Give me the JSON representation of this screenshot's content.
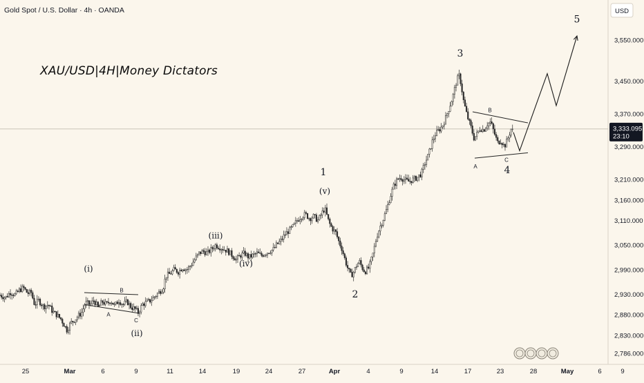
{
  "header": {
    "symbol_line": "Gold Spot / U.S. Dollar · 4h · OANDA"
  },
  "annotation": "XAU/USD|4H|Money Dictators",
  "colors": {
    "background": "#fbf6ec",
    "candle": "#2b2b2b",
    "current_price_bg": "#131722",
    "current_price_text": "#ffffff",
    "pattern_line": "#222222"
  },
  "chart_data": {
    "type": "candlestick",
    "y_axis_currency": "USD",
    "ylim": [
      2770,
      3620
    ],
    "yticks": [
      {
        "value": 3550,
        "label": "3,550.000"
      },
      {
        "value": 3450,
        "label": "3,450.000"
      },
      {
        "value": 3370,
        "label": "3,370.000"
      },
      {
        "value": 3290,
        "label": "3,290.000"
      },
      {
        "value": 3210,
        "label": "3,210.000"
      },
      {
        "value": 3160,
        "label": "3,160.000"
      },
      {
        "value": 3110,
        "label": "3,110.000"
      },
      {
        "value": 3050,
        "label": "3,050.000"
      },
      {
        "value": 2990,
        "label": "2,990.000"
      },
      {
        "value": 2930,
        "label": "2,930.000"
      },
      {
        "value": 2880,
        "label": "2,880.000"
      },
      {
        "value": 2830,
        "label": "2,830.000"
      },
      {
        "value": 2786,
        "label": "2,786.000"
      }
    ],
    "current_price": {
      "value": 3333.095,
      "label": "3,333.095",
      "countdown": "23:10"
    },
    "xticks": [
      "25",
      "Mar",
      "6",
      "9",
      "11",
      "14",
      "19",
      "24",
      "27",
      "Apr",
      "4",
      "9",
      "14",
      "17",
      "23",
      "28",
      "May",
      "6",
      "9"
    ],
    "path_points": [
      [
        0,
        2928
      ],
      [
        8,
        2922
      ],
      [
        15,
        2935
      ],
      [
        22,
        2928
      ],
      [
        28,
        2940
      ],
      [
        34,
        2946
      ],
      [
        40,
        2932
      ],
      [
        45,
        2935
      ],
      [
        50,
        2905
      ],
      [
        56,
        2915
      ],
      [
        63,
        2900
      ],
      [
        70,
        2905
      ],
      [
        76,
        2888
      ],
      [
        82,
        2880
      ],
      [
        88,
        2870
      ],
      [
        93,
        2855
      ],
      [
        97,
        2842
      ],
      [
        102,
        2860
      ],
      [
        108,
        2868
      ],
      [
        115,
        2880
      ],
      [
        118,
        2885
      ],
      [
        124,
        2910
      ],
      [
        130,
        2905
      ],
      [
        136,
        2915
      ],
      [
        142,
        2898
      ],
      [
        148,
        2912
      ],
      [
        154,
        2905
      ],
      [
        160,
        2915
      ],
      [
        166,
        2902
      ],
      [
        172,
        2915
      ],
      [
        178,
        2905
      ],
      [
        184,
        2912
      ],
      [
        190,
        2898
      ],
      [
        195,
        2895
      ],
      [
        200,
        2885
      ],
      [
        206,
        2905
      ],
      [
        212,
        2910
      ],
      [
        218,
        2915
      ],
      [
        224,
        2925
      ],
      [
        230,
        2935
      ],
      [
        236,
        2945
      ],
      [
        240,
        2975
      ],
      [
        246,
        2980
      ],
      [
        252,
        2990
      ],
      [
        258,
        2985
      ],
      [
        264,
        2995
      ],
      [
        270,
        2990
      ],
      [
        276,
        3000
      ],
      [
        282,
        3015
      ],
      [
        288,
        3030
      ],
      [
        294,
        3035
      ],
      [
        300,
        3030
      ],
      [
        306,
        3040
      ],
      [
        312,
        3050
      ],
      [
        318,
        3045
      ],
      [
        324,
        3040
      ],
      [
        330,
        3035
      ],
      [
        336,
        3025
      ],
      [
        342,
        3015
      ],
      [
        348,
        3025
      ],
      [
        354,
        3030
      ],
      [
        360,
        3020
      ],
      [
        366,
        3025
      ],
      [
        372,
        3030
      ],
      [
        378,
        3025
      ],
      [
        384,
        3030
      ],
      [
        390,
        3035
      ],
      [
        396,
        3040
      ],
      [
        400,
        3050
      ],
      [
        406,
        3060
      ],
      [
        412,
        3075
      ],
      [
        418,
        3085
      ],
      [
        424,
        3095
      ],
      [
        430,
        3110
      ],
      [
        436,
        3120
      ],
      [
        442,
        3125
      ],
      [
        448,
        3115
      ],
      [
        454,
        3120
      ],
      [
        460,
        3110
      ],
      [
        465,
        3125
      ],
      [
        470,
        3140
      ],
      [
        476,
        3105
      ],
      [
        481,
        3090
      ],
      [
        486,
        3080
      ],
      [
        490,
        3060
      ],
      [
        495,
        3040
      ],
      [
        500,
        3010
      ],
      [
        504,
        2990
      ],
      [
        508,
        2975
      ],
      [
        512,
        2985
      ],
      [
        516,
        3000
      ],
      [
        520,
        3010
      ],
      [
        524,
        2995
      ],
      [
        528,
        2985
      ],
      [
        534,
        2995
      ],
      [
        540,
        3030
      ],
      [
        545,
        3070
      ],
      [
        550,
        3095
      ],
      [
        555,
        3115
      ],
      [
        560,
        3140
      ],
      [
        565,
        3170
      ],
      [
        570,
        3195
      ],
      [
        575,
        3210
      ],
      [
        580,
        3215
      ],
      [
        586,
        3208
      ],
      [
        592,
        3205
      ],
      [
        598,
        3210
      ],
      [
        604,
        3215
      ],
      [
        610,
        3225
      ],
      [
        615,
        3250
      ],
      [
        620,
        3270
      ],
      [
        625,
        3300
      ],
      [
        630,
        3320
      ],
      [
        635,
        3330
      ],
      [
        640,
        3340
      ],
      [
        645,
        3360
      ],
      [
        650,
        3385
      ],
      [
        655,
        3410
      ],
      [
        660,
        3445
      ],
      [
        664,
        3465
      ],
      [
        667,
        3445
      ],
      [
        671,
        3400
      ],
      [
        676,
        3365
      ],
      [
        682,
        3335
      ],
      [
        686,
        3310
      ],
      [
        690,
        3320
      ],
      [
        695,
        3335
      ],
      [
        700,
        3330
      ],
      [
        705,
        3345
      ],
      [
        710,
        3350
      ],
      [
        715,
        3325
      ],
      [
        720,
        3300
      ],
      [
        725,
        3305
      ],
      [
        730,
        3290
      ],
      [
        735,
        3310
      ],
      [
        740,
        3335
      ],
      [
        743,
        3325
      ]
    ],
    "projection_path": [
      [
        743,
        3325
      ],
      [
        752,
        3280
      ],
      [
        792,
        3468
      ],
      [
        805,
        3390
      ],
      [
        835,
        3560
      ]
    ],
    "triangles": [
      {
        "name": "wave-4-triangle",
        "upper": [
          [
            684,
            3375
          ],
          [
            764,
            3348
          ]
        ],
        "lower": [
          [
            687,
            3262
          ],
          [
            764,
            3275
          ]
        ]
      },
      {
        "name": "wave-ii-triangle",
        "upper": [
          [
            122,
            2934
          ],
          [
            200,
            2929
          ]
        ],
        "lower": [
          [
            122,
            2905
          ],
          [
            200,
            2884
          ]
        ]
      }
    ],
    "wave_labels": [
      {
        "text": "(i)",
        "x": 128,
        "y": 2985,
        "size": 12
      },
      {
        "text": "(ii)",
        "x": 198,
        "y": 2828,
        "size": 12
      },
      {
        "text": "(iii)",
        "x": 312,
        "y": 3066,
        "size": 12
      },
      {
        "text": "(iv)",
        "x": 356,
        "y": 2998,
        "size": 12
      },
      {
        "text": "(v)",
        "x": 470,
        "y": 3175,
        "size": 12
      },
      {
        "text": "1",
        "x": 468,
        "y": 3220,
        "size": 14
      },
      {
        "text": "2",
        "x": 514,
        "y": 2922,
        "size": 14
      },
      {
        "text": "3",
        "x": 666,
        "y": 3510,
        "size": 14
      },
      {
        "text": "4",
        "x": 734,
        "y": 3225,
        "size": 14
      },
      {
        "text": "5",
        "x": 835,
        "y": 3593,
        "size": 14
      }
    ],
    "triangle_labels": [
      {
        "text": "A",
        "x": 157,
        "y": 2876
      },
      {
        "text": "B",
        "x": 176,
        "y": 2935
      },
      {
        "text": "C",
        "x": 197,
        "y": 2862
      },
      {
        "text": "A",
        "x": 688,
        "y": 3237
      },
      {
        "text": "B",
        "x": 709,
        "y": 3374
      },
      {
        "text": "C",
        "x": 733,
        "y": 3253
      }
    ]
  }
}
